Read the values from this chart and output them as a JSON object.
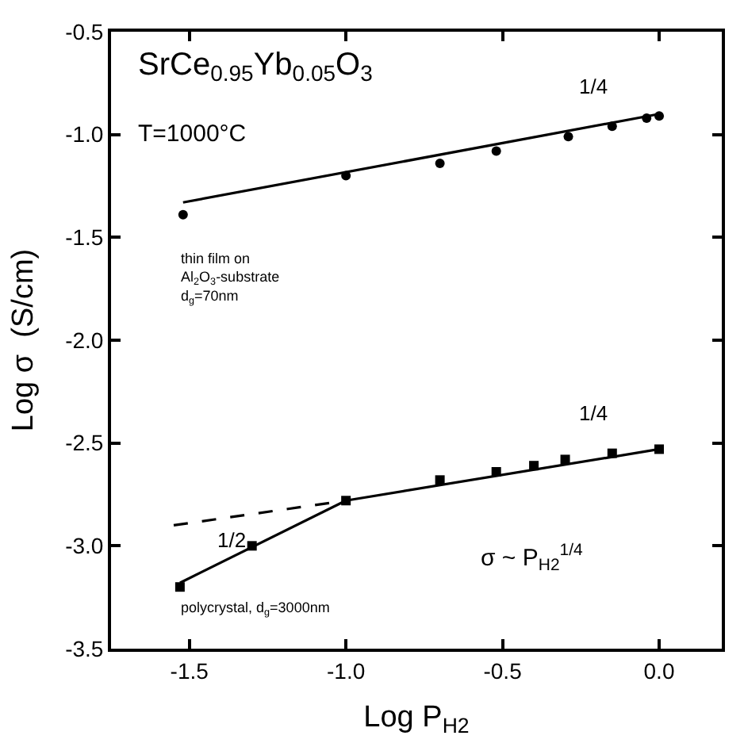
{
  "chart_data": {
    "type": "scatter",
    "xlabel": "Log P$_{H2}$",
    "ylabel": "Log σ  (S/cm)",
    "xlim": [
      -1.75,
      0.2
    ],
    "ylim": [
      -3.5,
      -0.5
    ],
    "xticks": [
      {
        "value": -1.5,
        "label": "-1.5"
      },
      {
        "value": -1.0,
        "label": "-1.0"
      },
      {
        "value": -0.5,
        "label": "-0.5"
      },
      {
        "value": 0.0,
        "label": "0.0"
      }
    ],
    "yticks": [
      {
        "value": -3.5,
        "label": "-3.5"
      },
      {
        "value": -3.0,
        "label": "-3.0"
      },
      {
        "value": -2.5,
        "label": "-2.5"
      },
      {
        "value": -2.0,
        "label": "-2.0"
      },
      {
        "value": -1.5,
        "label": "-1.5"
      },
      {
        "value": -1.0,
        "label": "-1.0"
      },
      {
        "value": -0.5,
        "label": "-0.5"
      }
    ],
    "series": [
      {
        "marker": "circle",
        "color": "#000000",
        "x": [
          -1.52,
          -1.0,
          -0.7,
          -0.52,
          -0.29,
          -0.15,
          -0.04,
          0.0
        ],
        "values": [
          -1.39,
          -1.2,
          -1.14,
          -1.08,
          -1.01,
          -0.96,
          -0.92,
          -0.91
        ]
      },
      {
        "type": "line",
        "marker": "none",
        "line_style": "solid",
        "color": "#000000",
        "x": [
          -1.52,
          0.0
        ],
        "values": [
          -1.33,
          -0.9
        ]
      },
      {
        "type": "scatter",
        "marker": "square",
        "color": "#000000",
        "x": [
          -1.53,
          -1.3,
          -1.0,
          -0.7,
          -0.52,
          -0.4,
          -0.3,
          -0.15,
          0.0
        ],
        "values": [
          -3.2,
          -3.0,
          -2.78,
          -2.68,
          -2.64,
          -2.61,
          -2.58,
          -2.55,
          -2.53
        ]
      },
      {
        "type": "line",
        "marker": "none",
        "line_style": "solid",
        "color": "#000000",
        "x": [
          -1.53,
          -1.0
        ],
        "values": [
          -3.18,
          -2.78
        ]
      },
      {
        "type": "line",
        "marker": "none",
        "line_style": "solid",
        "color": "#000000",
        "x": [
          -1.0,
          0.0
        ],
        "values": [
          -2.78,
          -2.53
        ]
      },
      {
        "type": "line",
        "marker": "none",
        "line_style": "dashed",
        "color": "#000000",
        "x": [
          -1.55,
          -1.0
        ],
        "values": [
          -2.9,
          -2.78
        ]
      }
    ],
    "annotations": [
      "SrCe$_{0.95}$Yb$_{0.05}$O$_{3}$",
      "T=1000°C",
      "1/4",
      "thin film on\nAl$_{2}$O$_{3}$-substrate\nd$_{g}$=70nm",
      "1/4",
      "1/2",
      "σ ~ P$_{H2}$$^{1/4}$",
      "polycrystal, d$_{g}$=3000nm"
    ]
  }
}
